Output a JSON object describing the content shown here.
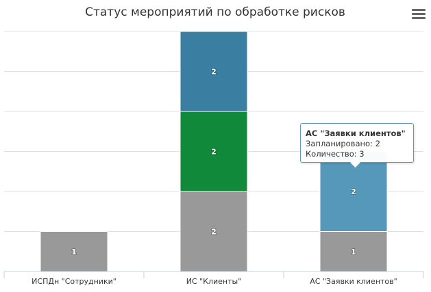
{
  "chart_data": {
    "type": "bar",
    "stacked": true,
    "title": "Статус мероприятий по обработке рисков",
    "categories": [
      "ИСПДн \"Сотрудники\"",
      "ИС \"Клиенты\"",
      "АС \"Заявки клиентов\""
    ],
    "series": [
      {
        "name": "",
        "color": "#999999",
        "values": [
          1,
          2,
          1
        ]
      },
      {
        "name": "",
        "color": "#108a3a",
        "values": [
          0,
          2,
          0
        ]
      },
      {
        "name": "Запланировано",
        "color": "#3a7ea1",
        "values": [
          0,
          2,
          2
        ]
      }
    ],
    "ylim": [
      0,
      6
    ],
    "grid": true,
    "xlabel": "",
    "ylabel": ""
  },
  "tooltip": {
    "title": "АС \"Заявки клиентов\"",
    "line1": "Запланировано: 2",
    "line2": "Количество: 3"
  },
  "hover": {
    "category_index": 2,
    "series_index": 2,
    "color": "#5598ba"
  },
  "menu": {
    "icon": "hamburger-menu-icon"
  }
}
